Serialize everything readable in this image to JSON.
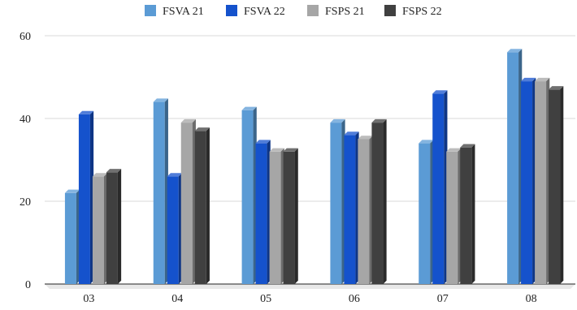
{
  "chart_data": {
    "type": "bar",
    "style": "3d-clustered-column",
    "categories": [
      "03",
      "04",
      "05",
      "06",
      "07",
      "08"
    ],
    "series": [
      {
        "name": "FSVA 21",
        "color": "#5b9bd5",
        "values": [
          22,
          44,
          42,
          39,
          34,
          56
        ]
      },
      {
        "name": "FSVA 22",
        "color": "#1552cc",
        "values": [
          41,
          26,
          34,
          36,
          46,
          49
        ]
      },
      {
        "name": "FSPS 21",
        "color": "#a6a6a6",
        "values": [
          26,
          39,
          32,
          35,
          32,
          49
        ]
      },
      {
        "name": "FSPS 22",
        "color": "#404040",
        "values": [
          27,
          37,
          32,
          39,
          33,
          47
        ]
      }
    ],
    "y_ticks": [
      "0",
      "20",
      "40",
      "60"
    ],
    "ylim": [
      0,
      60
    ],
    "title": "",
    "xlabel": "",
    "ylabel": "",
    "grid": true,
    "legend_position": "top"
  }
}
